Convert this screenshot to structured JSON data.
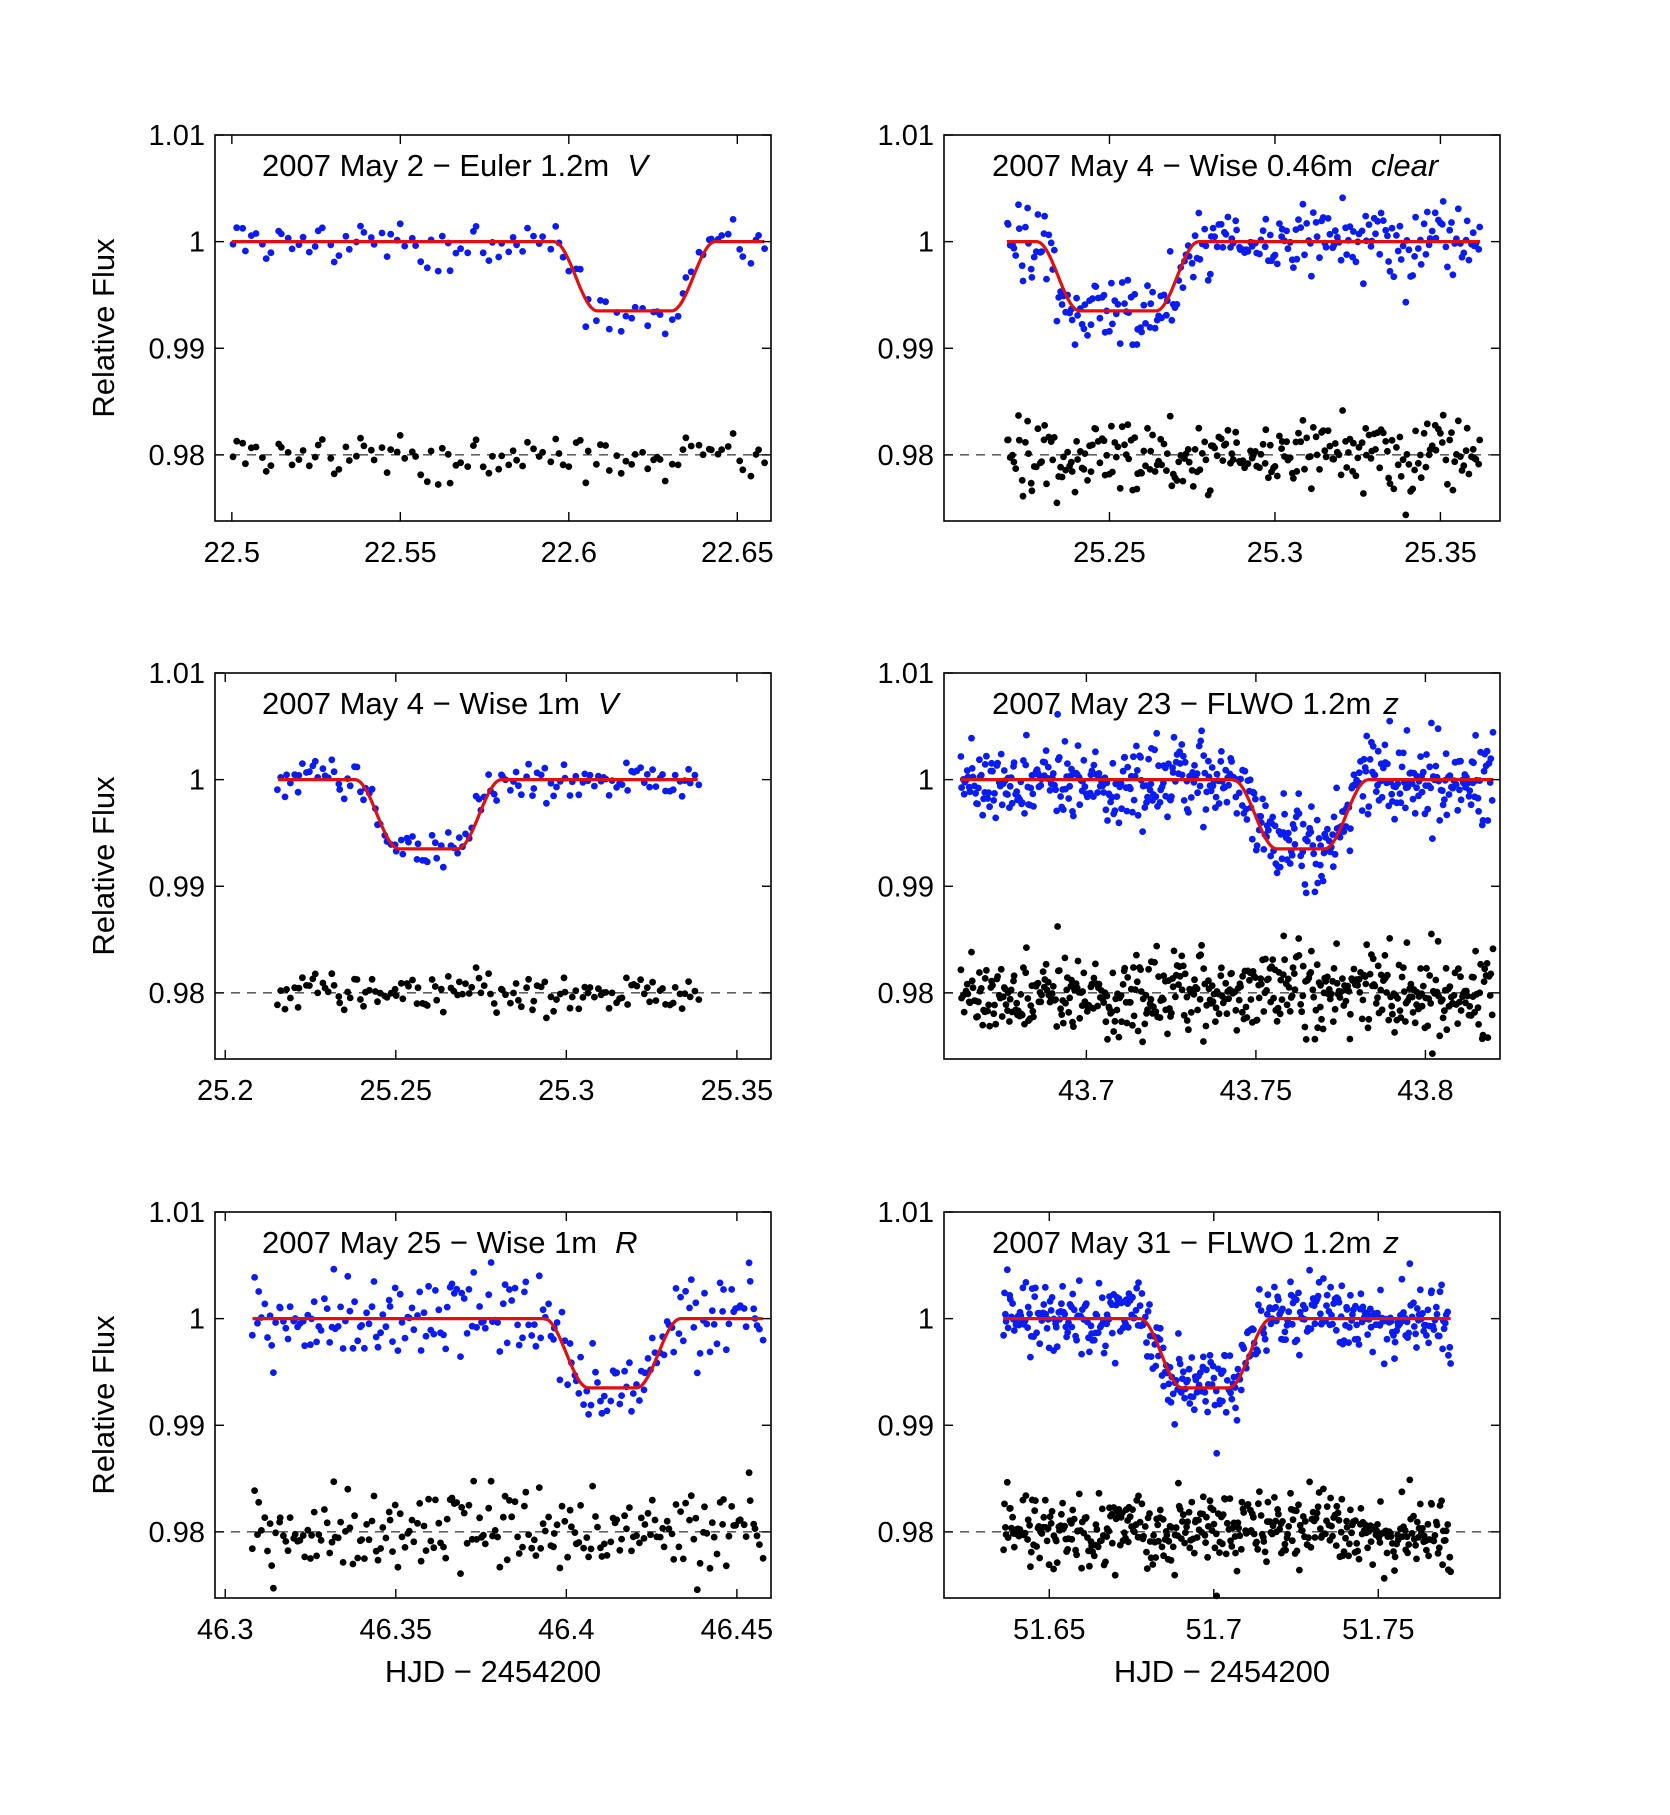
{
  "figure": {
    "y_axis_label": "Relative Flux",
    "x_axis_label": "HJD − 2454200"
  },
  "colors": {
    "data": "#0a1cf0",
    "residual": "#000000",
    "model": "#e01010"
  },
  "chart_data": [
    {
      "type": "scatter",
      "title": "2007 May 2 − Euler 1.2m",
      "filter": "V",
      "xlim": [
        22.495,
        22.66
      ],
      "ylim": [
        0.9738,
        1.01
      ],
      "xticks": [
        22.5,
        22.55,
        22.6,
        22.65
      ],
      "xtick_labels": [
        "22.5",
        "22.55",
        "22.6",
        "22.65"
      ],
      "yticks": [
        0.98,
        0.99,
        1.0,
        1.01
      ],
      "ytick_labels": [
        "0.98",
        "0.99",
        "1",
        "1.01"
      ],
      "data_range": [
        22.5,
        22.658
      ],
      "n_points": 105,
      "noise": 0.0011,
      "transit": {
        "t1": 22.5955,
        "t2": 22.6085,
        "t3": 22.6305,
        "t4": 22.6435,
        "depth": 0.0065
      },
      "residual_offset": 0.98,
      "series": [
        {
          "name": "Relative flux (data)",
          "color": "#0a1cf0"
        },
        {
          "name": "Transit model",
          "color": "#e01010"
        },
        {
          "name": "Residuals (offset 0.98)",
          "color": "#000000"
        }
      ]
    },
    {
      "type": "scatter",
      "title": "2007 May 4 − Wise 0.46m",
      "filter": "clear",
      "xlim": [
        25.2,
        25.368
      ],
      "ylim": [
        0.9738,
        1.01
      ],
      "xticks": [
        25.25,
        25.3,
        25.35
      ],
      "xtick_labels": [
        "25.25",
        "25.3",
        "25.35"
      ],
      "yticks": [
        0.98,
        0.99,
        1.0,
        1.01
      ],
      "ytick_labels": [
        "0.98",
        "0.99",
        "1",
        "1.01"
      ],
      "data_range": [
        25.219,
        25.362
      ],
      "n_points": 260,
      "noise": 0.0017,
      "transit": {
        "t1": 25.228,
        "t2": 25.241,
        "t3": 25.264,
        "t4": 25.277,
        "depth": 0.0065
      },
      "residual_offset": 0.98,
      "series": [
        {
          "name": "Relative flux (data)",
          "color": "#0a1cf0"
        },
        {
          "name": "Transit model",
          "color": "#e01010"
        },
        {
          "name": "Residuals (offset 0.98)",
          "color": "#000000"
        }
      ]
    },
    {
      "type": "scatter",
      "title": "2007 May 4 − Wise 1m",
      "filter": "V",
      "xlim": [
        25.197,
        25.36
      ],
      "ylim": [
        0.9738,
        1.01
      ],
      "xticks": [
        25.2,
        25.25,
        25.3,
        25.35
      ],
      "xtick_labels": [
        "25.2",
        "25.25",
        "25.3",
        "25.35"
      ],
      "yticks": [
        0.98,
        0.99,
        1.0,
        1.01
      ],
      "ytick_labels": [
        "0.98",
        "0.99",
        "1",
        "1.01"
      ],
      "data_range": [
        25.2155,
        25.3385
      ],
      "n_points": 135,
      "noise": 0.0009,
      "transit": {
        "t1": 25.238,
        "t2": 25.251,
        "t3": 25.268,
        "t4": 25.281,
        "depth": 0.0065
      },
      "residual_offset": 0.98,
      "series": [
        {
          "name": "Relative flux (data)",
          "color": "#0a1cf0"
        },
        {
          "name": "Transit model",
          "color": "#e01010"
        },
        {
          "name": "Residuals (offset 0.98)",
          "color": "#000000"
        }
      ]
    },
    {
      "type": "scatter",
      "title": "2007 May 23 − FLWO 1.2m",
      "filter": "z",
      "xlim": [
        43.658,
        43.822
      ],
      "ylim": [
        0.9738,
        1.01
      ],
      "xticks": [
        43.7,
        43.75,
        43.8
      ],
      "xtick_labels": [
        "43.7",
        "43.75",
        "43.8"
      ],
      "yticks": [
        0.98,
        0.99,
        1.0,
        1.01
      ],
      "ytick_labels": [
        "0.98",
        "0.99",
        "1",
        "1.01"
      ],
      "data_range": [
        43.663,
        43.82
      ],
      "n_points": 520,
      "noise": 0.0019,
      "transit": {
        "t1": 43.7432,
        "t2": 43.7562,
        "t3": 43.7702,
        "t4": 43.7832,
        "depth": 0.0065
      },
      "residual_offset": 0.98,
      "series": [
        {
          "name": "Relative flux (data)",
          "color": "#0a1cf0"
        },
        {
          "name": "Transit model",
          "color": "#e01010"
        },
        {
          "name": "Residuals (offset 0.98)",
          "color": "#000000"
        }
      ]
    },
    {
      "type": "scatter",
      "title": "2007 May 25 − Wise 1m",
      "filter": "R",
      "xlim": [
        46.297,
        46.46
      ],
      "ylim": [
        0.9738,
        1.01
      ],
      "xticks": [
        46.3,
        46.35,
        46.4,
        46.45
      ],
      "xtick_labels": [
        "46.3",
        "46.35",
        "46.4",
        "46.45"
      ],
      "yticks": [
        0.98,
        0.99,
        1.0,
        1.01
      ],
      "ytick_labels": [
        "0.98",
        "0.99",
        "1",
        "1.01"
      ],
      "data_range": [
        46.308,
        46.4575
      ],
      "n_points": 215,
      "noise": 0.0021,
      "transit": {
        "t1": 46.3935,
        "t2": 46.4065,
        "t3": 46.4205,
        "t4": 46.4335,
        "depth": 0.0065
      },
      "residual_offset": 0.98,
      "series": [
        {
          "name": "Relative flux (data)",
          "color": "#0a1cf0"
        },
        {
          "name": "Transit model",
          "color": "#e01010"
        },
        {
          "name": "Residuals (offset 0.98)",
          "color": "#000000"
        }
      ]
    },
    {
      "type": "scatter",
      "title": "2007 May 31 − FLWO 1.2m",
      "filter": "z",
      "xlim": [
        51.618,
        51.787
      ],
      "ylim": [
        0.9738,
        1.01
      ],
      "xticks": [
        51.65,
        51.7,
        51.75
      ],
      "xtick_labels": [
        "51.65",
        "51.7",
        "51.75"
      ],
      "yticks": [
        0.98,
        0.99,
        1.0,
        1.01
      ],
      "ytick_labels": [
        "0.98",
        "0.99",
        "1",
        "1.01"
      ],
      "data_range": [
        51.636,
        51.772
      ],
      "n_points": 430,
      "noise": 0.0017,
      "transit": {
        "t1": 51.6775,
        "t2": 51.6905,
        "t3": 51.7045,
        "t4": 51.7175,
        "depth": 0.0065
      },
      "residual_offset": 0.98,
      "series": [
        {
          "name": "Relative flux (data)",
          "color": "#0a1cf0"
        },
        {
          "name": "Transit model",
          "color": "#e01010"
        },
        {
          "name": "Residuals (offset 0.98)",
          "color": "#000000"
        }
      ]
    }
  ]
}
